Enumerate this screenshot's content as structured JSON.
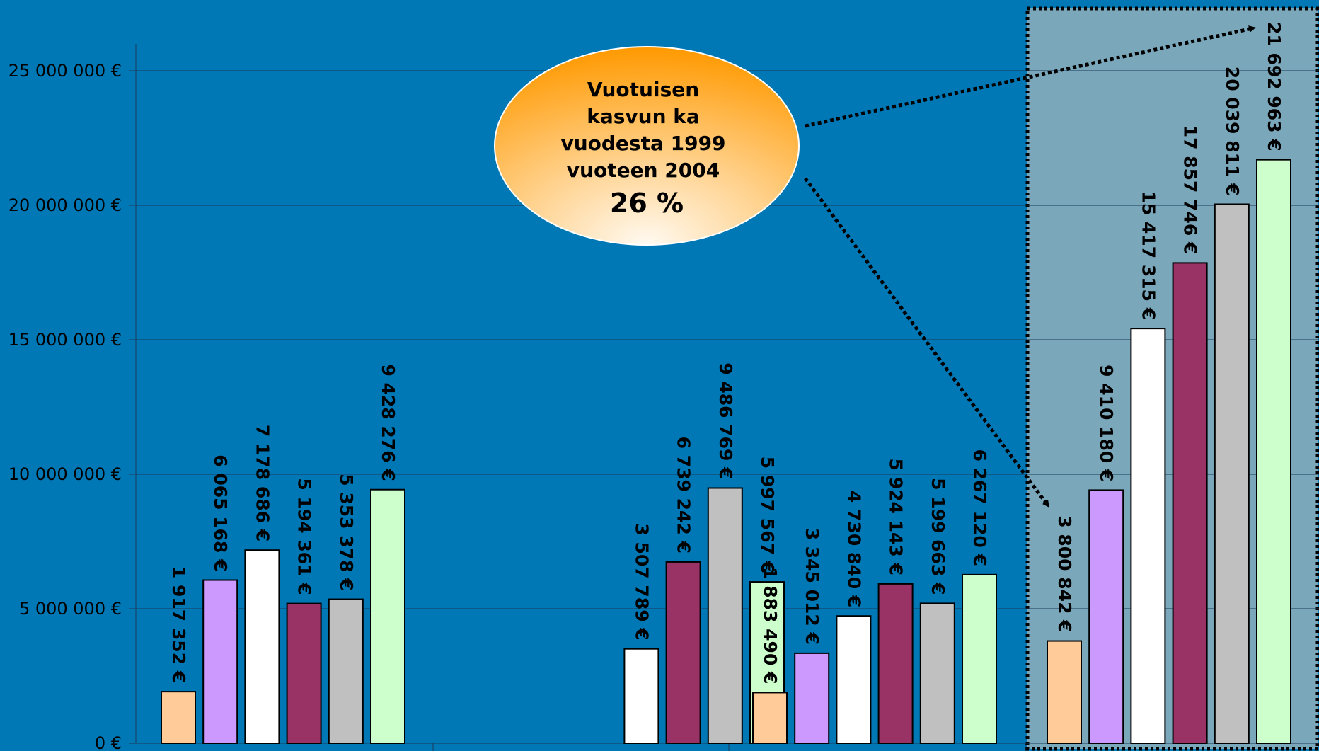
{
  "colors": {
    "background": "#0178b6",
    "highlight_panel": "#7ba7bb",
    "series": [
      "#ffcc99",
      "#cc99ff",
      "#ffffff",
      "#993366",
      "#c0c0c0",
      "#ccffcc"
    ]
  },
  "callout": {
    "lines": [
      "Vuotuisen",
      "kasvun ka",
      "vuodesta 1999",
      "vuoteen 2004"
    ],
    "value": "26 %"
  },
  "chart_data": {
    "type": "bar",
    "ylim": [
      0,
      25000000
    ],
    "yticks": [
      0,
      5000000,
      10000000,
      15000000,
      20000000,
      25000000
    ],
    "ytick_labels": [
      "0 €",
      "5 000 000 €",
      "10 000 000 €",
      "15 000 000 €",
      "20 000 000 €",
      "25 000 000 €"
    ],
    "grid": true,
    "legend": "none",
    "groups": [
      {
        "bars": [
          {
            "series": 0,
            "value": 1917352,
            "label": "1 917 352 €"
          },
          {
            "series": 1,
            "value": 6065168,
            "label": "6 065 168 €"
          },
          {
            "series": 2,
            "value": 7178686,
            "label": "7 178 686 €"
          },
          {
            "series": 3,
            "value": 5194361,
            "label": "5 194 361 €"
          },
          {
            "series": 4,
            "value": 5353378,
            "label": "5 353 378 €"
          },
          {
            "series": 5,
            "value": 9428276,
            "label": "9 428 276 €"
          }
        ]
      },
      {
        "bars": [
          {
            "series": 2,
            "value": 3507789,
            "label": "3 507 789 €"
          },
          {
            "series": 3,
            "value": 6739242,
            "label": "6 739 242 €"
          },
          {
            "series": 4,
            "value": 9486769,
            "label": "9 486 769 €"
          },
          {
            "series": 5,
            "value": 5997567,
            "label": "5 997 567 €"
          }
        ]
      },
      {
        "bars": [
          {
            "series": 0,
            "value": 1883490,
            "label": "1 883 490 €"
          },
          {
            "series": 1,
            "value": 3345012,
            "label": "3 345 012 €"
          },
          {
            "series": 2,
            "value": 4730840,
            "label": "4 730 840 €"
          },
          {
            "series": 3,
            "value": 5924143,
            "label": "5 924 143 €"
          },
          {
            "series": 4,
            "value": 5199663,
            "label": "5 199 663 €"
          },
          {
            "series": 5,
            "value": 6267120,
            "label": "6 267 120 €"
          }
        ]
      },
      {
        "highlighted": true,
        "bars": [
          {
            "series": 0,
            "value": 3800842,
            "label": "3 800 842 €"
          },
          {
            "series": 1,
            "value": 9410180,
            "label": "9 410 180 €"
          },
          {
            "series": 2,
            "value": 15417315,
            "label": "15 417 315 €"
          },
          {
            "series": 3,
            "value": 17857746,
            "label": "17 857 746 €"
          },
          {
            "series": 4,
            "value": 20039811,
            "label": "20 039 811 €"
          },
          {
            "series": 5,
            "value": 21692963,
            "label": "21 692 963 €"
          }
        ]
      }
    ]
  }
}
